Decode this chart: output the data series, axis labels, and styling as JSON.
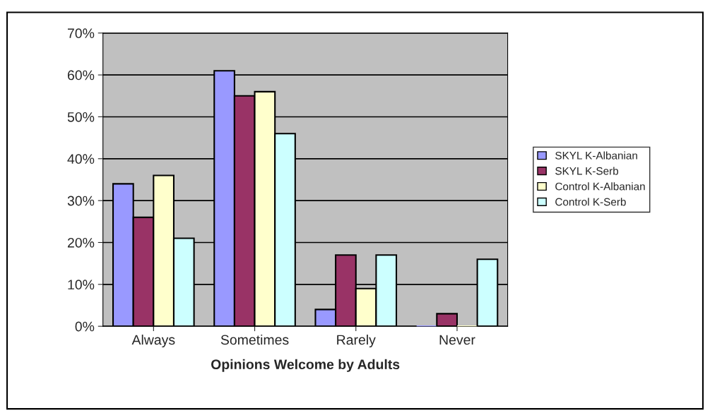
{
  "chart_data": {
    "type": "bar",
    "xlabel": "Opinions Welcome by Adults",
    "categories": [
      "Always",
      "Sometimes",
      "Rarely",
      "Never"
    ],
    "series": [
      {
        "name": "SKYL K-Albanian",
        "color": "#9999ff",
        "values": [
          34,
          61,
          4,
          0
        ]
      },
      {
        "name": "SKYL K-Serb",
        "color": "#993366",
        "values": [
          26,
          55,
          17,
          3
        ]
      },
      {
        "name": "Control K-Albanian",
        "color": "#ffffcc",
        "values": [
          36,
          56,
          9,
          0
        ]
      },
      {
        "name": "Control K-Serb",
        "color": "#ccffff",
        "values": [
          21,
          46,
          17,
          16
        ]
      }
    ],
    "ylim": [
      0,
      70
    ],
    "yticks": [
      {
        "value": 0,
        "label": "0%"
      },
      {
        "value": 10,
        "label": "10%"
      },
      {
        "value": 20,
        "label": "20%"
      },
      {
        "value": 30,
        "label": "30%"
      },
      {
        "value": 40,
        "label": "40%"
      },
      {
        "value": 50,
        "label": "50%"
      },
      {
        "value": 60,
        "label": "60%"
      },
      {
        "value": 70,
        "label": "70%"
      }
    ],
    "grid": "y",
    "legend": "right"
  }
}
